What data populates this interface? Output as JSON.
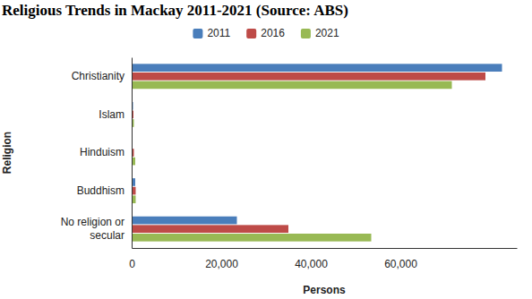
{
  "chart_data": {
    "type": "bar",
    "orientation": "horizontal",
    "title": "Religious Trends in Mackay 2011-2021 (Source: ABS)",
    "x_label": "Persons",
    "y_label": "Religion",
    "categories": [
      "Christianity",
      "Islam",
      "Hinduism",
      "Buddhism",
      "No religion or secular"
    ],
    "series": [
      {
        "name": "2011",
        "color": "#4a7ebb",
        "values": [
          82700,
          300,
          200,
          800,
          23500
        ]
      },
      {
        "name": "2016",
        "color": "#be4b48",
        "values": [
          79000,
          400,
          500,
          900,
          35000
        ]
      },
      {
        "name": "2021",
        "color": "#98b954",
        "values": [
          71500,
          500,
          800,
          900,
          53500
        ]
      }
    ],
    "xlim": [
      0,
      86000
    ],
    "xticks": [
      0,
      {
        "value": 20000,
        "label": "20,000"
      },
      {
        "value": 40000,
        "label": "40,000"
      },
      {
        "value": 60000,
        "label": "60,000"
      }
    ],
    "legend": "top",
    "grid": false
  }
}
